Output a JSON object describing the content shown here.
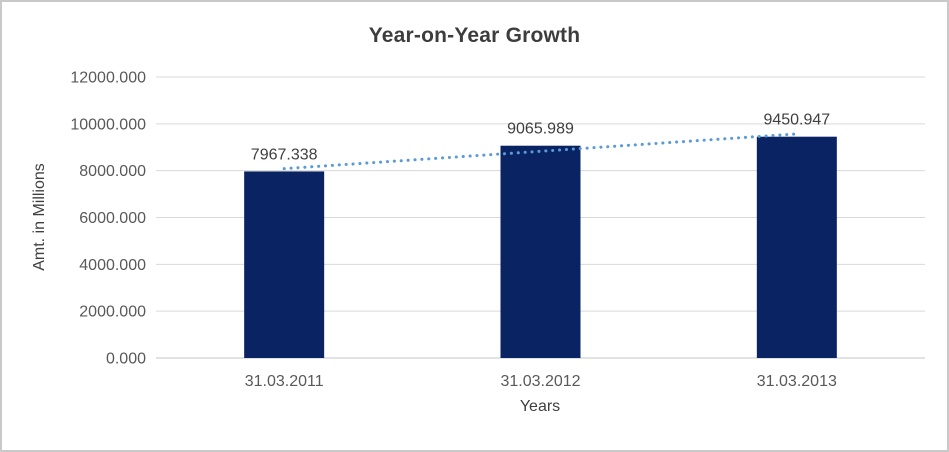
{
  "chart_data": {
    "type": "bar",
    "title": "Year-on-Year Growth",
    "categories": [
      "31.03.2011",
      "31.03.2012",
      "31.03.2013"
    ],
    "values": [
      7967.338,
      9065.989,
      9450.947
    ],
    "data_labels": [
      "7967.338",
      "9065.989",
      "9450.947"
    ],
    "xlabel": "Years",
    "ylabel": "Amt. in Millions",
    "ylim": [
      0,
      12000
    ],
    "ytick_interval": 2000,
    "ytick_labels": [
      "0.000",
      "2000.000",
      "4000.000",
      "6000.000",
      "8000.000",
      "10000.000",
      "12000.000"
    ],
    "grid": true,
    "legend_position": "none",
    "trendline": {
      "type": "linear",
      "style": "dotted"
    }
  },
  "colors": {
    "bar": "#0a2463",
    "trendline": "#5b9bd5",
    "gridline": "#d9d9d9",
    "axis_line": "#c6c6c6",
    "title_text": "#3d3d3d",
    "tick_text": "#595959",
    "axis_title_text": "#404040",
    "data_label_text": "#3f3f3f",
    "frame_border": "#c9c9c9",
    "background": "#ffffff"
  }
}
